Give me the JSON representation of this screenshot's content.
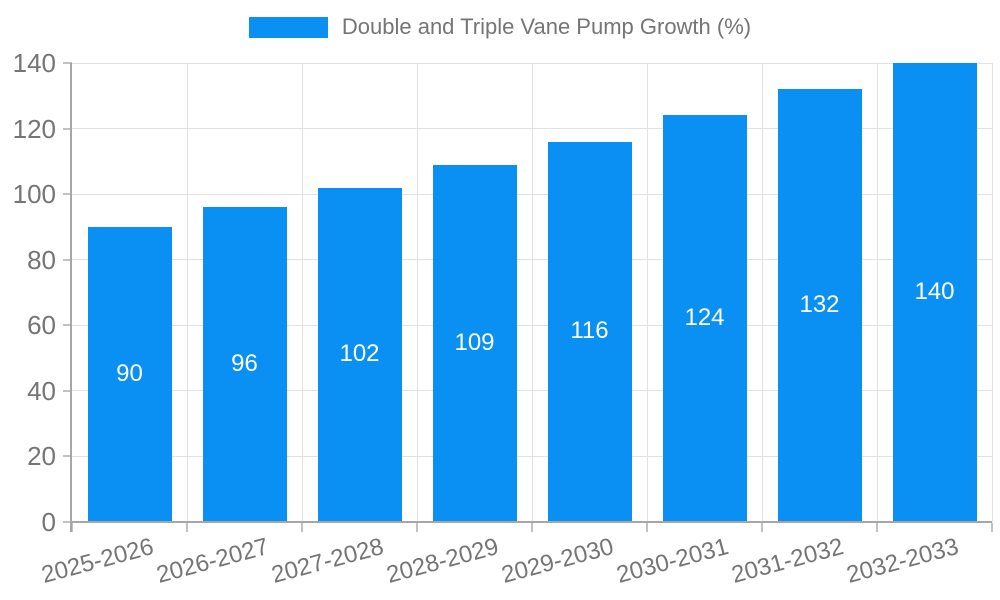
{
  "legend": {
    "label": "Double and Triple Vane Pump Growth (%)"
  },
  "colors": {
    "bar": "#0990F2",
    "grid": "#E2E2E2",
    "axis": "#A6A6A6",
    "tick": "#C2C2C2",
    "text": "#757575",
    "value_label": "#FFFFFF",
    "background": "#FFFFFF"
  },
  "chart_data": {
    "type": "bar",
    "title": "Double and Triple Vane Pump Growth (%)",
    "categories": [
      "2025-2026",
      "2026-2027",
      "2027-2028",
      "2028-2029",
      "2029-2030",
      "2030-2031",
      "2031-2032",
      "2032-2033"
    ],
    "values": [
      90,
      96,
      102,
      109,
      116,
      124,
      132,
      140
    ],
    "value_labels": [
      "90",
      "96",
      "102",
      "109",
      "116",
      "124",
      "132",
      "140"
    ],
    "xlabel": "",
    "ylabel": "",
    "ylim": [
      0,
      140
    ],
    "yticks": [
      0,
      20,
      40,
      60,
      80,
      100,
      120,
      140
    ],
    "grid": true,
    "legend_position": "top-center",
    "bar_label_position": "center",
    "x_label_rotation_deg": -15
  }
}
